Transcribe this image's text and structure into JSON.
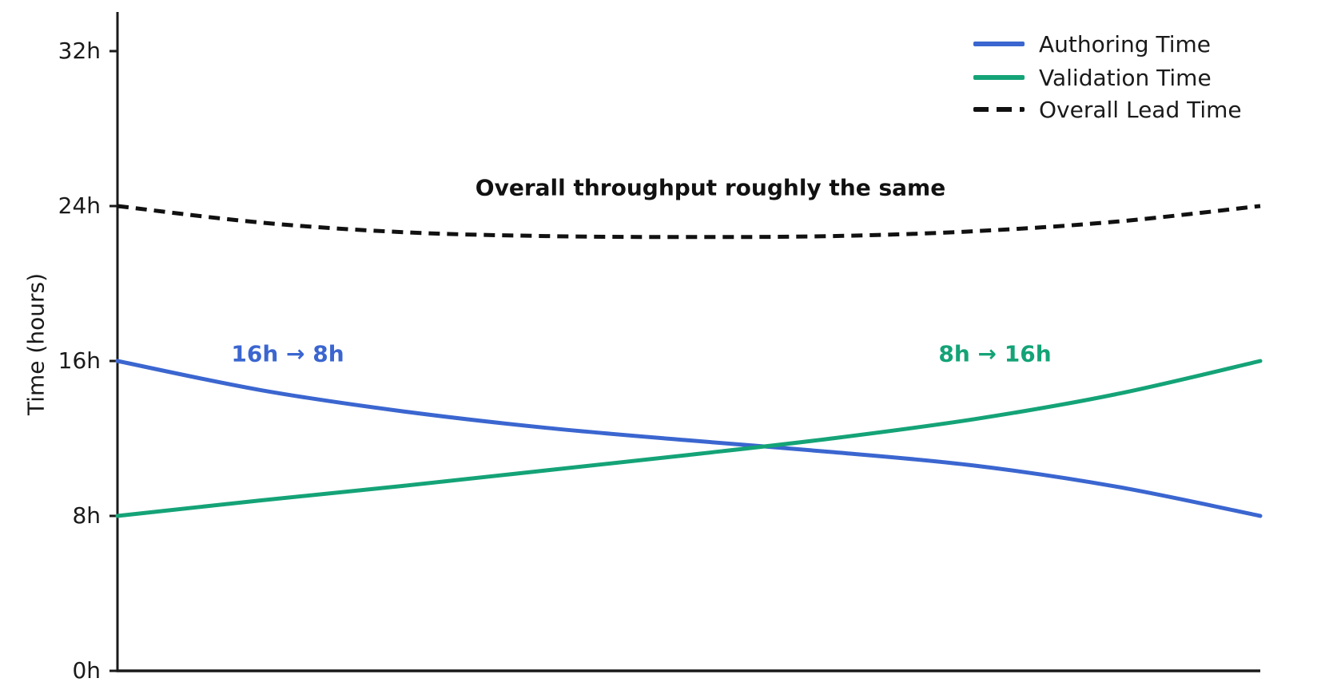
{
  "chart_data": {
    "type": "line",
    "title": "",
    "xlabel": "",
    "ylabel": "Time (hours)",
    "ylim": [
      0,
      34
    ],
    "grid": false,
    "legend_position": "upper right",
    "yticks": [
      0,
      8,
      16,
      24,
      32
    ],
    "ytick_labels": [
      "0h",
      "8h",
      "16h",
      "24h",
      "32h"
    ],
    "x": [
      0,
      0.125,
      0.25,
      0.375,
      0.5,
      0.625,
      0.75,
      0.875,
      1
    ],
    "series": [
      {
        "name": "Authoring Time",
        "color": "#3b66d0",
        "dash": false,
        "values": [
          16,
          14.5,
          13.4,
          12.55,
          11.9,
          11.3,
          10.6,
          9.5,
          8
        ]
      },
      {
        "name": "Validation Time",
        "color": "#14a377",
        "dash": false,
        "values": [
          8,
          8.8,
          9.55,
          10.35,
          11.15,
          12.0,
          13.0,
          14.3,
          16
        ]
      },
      {
        "name": "Overall Lead Time",
        "color": "#111111",
        "dash": true,
        "values": [
          24,
          23.15,
          22.65,
          22.45,
          22.4,
          22.45,
          22.7,
          23.2,
          24
        ]
      }
    ],
    "annotations": [
      {
        "text": "Overall throughput roughly the same",
        "color": "#111111"
      },
      {
        "text": "16h → 8h",
        "color": "#3b66d0"
      },
      {
        "text": "8h → 16h",
        "color": "#14a377"
      }
    ],
    "axis_color": "#1a1a1a"
  }
}
